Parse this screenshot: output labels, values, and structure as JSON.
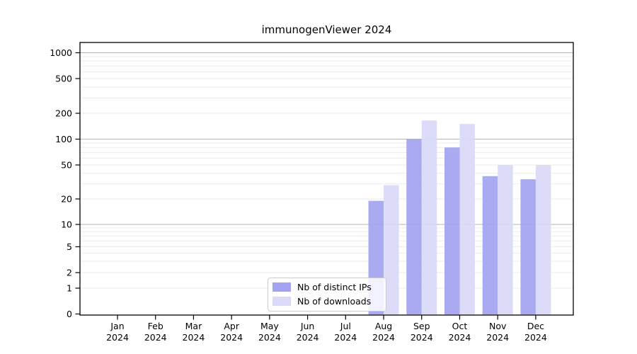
{
  "chart_data": {
    "type": "bar",
    "title": "immunogenViewer 2024",
    "xlabel": "",
    "ylabel": "",
    "y_scale": "symlog",
    "y_ticks": [
      0,
      1,
      2,
      5,
      10,
      20,
      50,
      100,
      200,
      500,
      1000
    ],
    "ylim": [
      0,
      1400
    ],
    "grid": true,
    "legend_position": "lower center",
    "categories": [
      "Jan",
      "Feb",
      "Mar",
      "Apr",
      "May",
      "Jun",
      "Jul",
      "Aug",
      "Sep",
      "Oct",
      "Nov",
      "Dec"
    ],
    "category_year": "2024",
    "series": [
      {
        "name": "Nb of distinct IPs",
        "color": "#a3a3f2",
        "values": [
          0,
          0,
          0,
          0,
          0,
          0,
          0,
          19,
          100,
          80,
          37,
          34
        ]
      },
      {
        "name": "Nb of downloads",
        "color": "#d9d9f8",
        "values": [
          0,
          0,
          0,
          0,
          0,
          0,
          0,
          29,
          165,
          150,
          50,
          50
        ]
      }
    ]
  }
}
